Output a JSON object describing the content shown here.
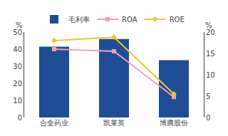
{
  "chart_data": {
    "type": "bar",
    "categories": [
      "合全药业",
      "凯莱英",
      "博腾股份"
    ],
    "series": [
      {
        "name": "毛利率",
        "type": "bar",
        "color": "#1f4e96",
        "values": [
          41.5,
          45.9,
          33.5
        ]
      },
      {
        "name": "ROA",
        "type": "line",
        "axis": "y2",
        "marker": "square",
        "color": "#f4a0b4",
        "values": [
          16.0,
          15.5,
          4.8
        ]
      },
      {
        "name": "ROE",
        "type": "line",
        "axis": "y2",
        "marker": "diamond",
        "color": "#e8c83a",
        "values": [
          18.0,
          18.8,
          5.5
        ]
      }
    ],
    "ylabel": "%",
    "y2label": "%",
    "ylim": [
      0,
      50
    ],
    "yticks": [
      0,
      10,
      20,
      30,
      40,
      50
    ],
    "y2lim": [
      0,
      20
    ],
    "y2ticks": [
      0,
      5,
      10,
      15,
      20
    ],
    "grid": false,
    "legend": "top"
  }
}
